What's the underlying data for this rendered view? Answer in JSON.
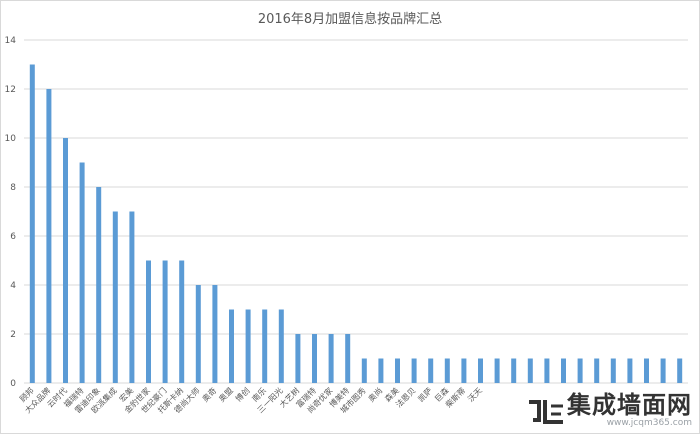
{
  "chart_data": {
    "type": "bar",
    "title": "2016年8月加盟信息按品牌汇总",
    "xlabel": "",
    "ylabel": "",
    "ylim": [
      0,
      14
    ],
    "yticks": [
      0,
      2,
      4,
      6,
      8,
      10,
      12,
      14
    ],
    "grid": true,
    "legend": "none",
    "bar_color": "#5b9bd5",
    "grid_color": "#d9d9d9",
    "categories": [
      "顾邦",
      "大众品牌",
      "云时代",
      "福瑞特",
      "雷迪印象",
      "欧派集成",
      "宏美",
      "金豹世家",
      "世纪豪门",
      "托斯卡纳",
      "德尚大师",
      "奥奇",
      "奥盟",
      "博创",
      "南乐",
      "三一阳光",
      "大艺树",
      "富瑞特",
      "尚奇优家",
      "博美特",
      "城市图秀",
      "奥尚",
      "森美",
      "法恩贝",
      "凯萨",
      "巨森",
      "柴斯蒂",
      "沃天",
      "",
      "",
      "",
      "",
      "",
      "",
      "",
      "",
      "",
      "",
      "",
      ""
    ],
    "values": [
      13,
      12,
      10,
      9,
      8,
      7,
      7,
      5,
      5,
      5,
      4,
      4,
      3,
      3,
      3,
      3,
      2,
      2,
      2,
      2,
      1,
      1,
      1,
      1,
      1,
      1,
      1,
      1,
      1,
      1,
      1,
      1,
      1,
      1,
      1,
      1,
      1,
      1,
      1,
      1
    ]
  },
  "watermark": {
    "name": "集成墙面网",
    "url": "www.jcqm365.com"
  }
}
